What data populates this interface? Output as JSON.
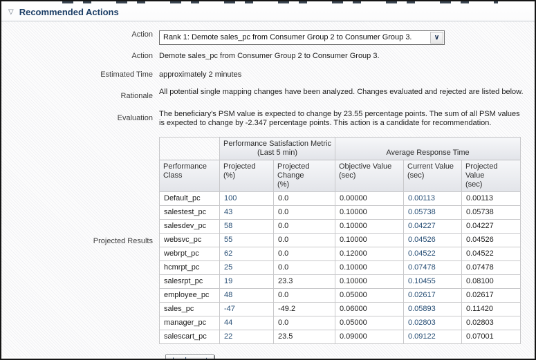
{
  "colors": {
    "accent_navy": "#1c3e66",
    "value_blue": "#274e75",
    "table_border": "#c8c8ca"
  },
  "icons": {
    "collapse_triangle": "▽",
    "select_chevron": "∨"
  },
  "section": {
    "title": "Recommended Actions"
  },
  "form": {
    "action_select": {
      "label": "Action",
      "value": "Rank 1: Demote sales_pc from Consumer Group 2 to Consumer Group 3."
    },
    "action": {
      "label": "Action",
      "value": "Demote sales_pc from Consumer Group 2 to Consumer Group 3."
    },
    "estimated_time": {
      "label": "Estimated Time",
      "value": "approximately 2 minutes"
    },
    "rationale": {
      "label": "Rationale",
      "value": "All potential single mapping changes have been analyzed. Changes evaluated and rejected are listed below."
    },
    "evaluation": {
      "label": "Evaluation",
      "value": "The beneficiary's PSM value is expected to change by 23.55 percentage points. The sum of all PSM values is expected to change by -2.347 percentage points. This action is a candidate for recommendation."
    },
    "projected_results": {
      "label": "Projected Results"
    }
  },
  "table": {
    "groups": [
      {
        "label": "Performance Satisfaction Metric",
        "sublabel": "(Last 5 min)"
      },
      {
        "label": "Average Response Time"
      }
    ],
    "columns": [
      {
        "l1": "Performance",
        "l2": "Class"
      },
      {
        "l1": "Projected",
        "l2": "(%)"
      },
      {
        "l1": "Projected Change",
        "l2": "(%)"
      },
      {
        "l1": "Objective Value",
        "l2": "(sec)"
      },
      {
        "l1": "Current Value",
        "l2": "(sec)"
      },
      {
        "l1": "Projected Value",
        "l2": "(sec)"
      }
    ],
    "blue_columns": [
      1,
      4
    ],
    "rows": [
      [
        "Default_pc",
        "100",
        "0.0",
        "0.00000",
        "0.00113",
        "0.00113"
      ],
      [
        "salestest_pc",
        "43",
        "0.0",
        "0.10000",
        "0.05738",
        "0.05738"
      ],
      [
        "salesdev_pc",
        "58",
        "0.0",
        "0.10000",
        "0.04227",
        "0.04227"
      ],
      [
        "websvc_pc",
        "55",
        "0.0",
        "0.10000",
        "0.04526",
        "0.04526"
      ],
      [
        "webrpt_pc",
        "62",
        "0.0",
        "0.12000",
        "0.04522",
        "0.04522"
      ],
      [
        "hcmrpt_pc",
        "25",
        "0.0",
        "0.10000",
        "0.07478",
        "0.07478"
      ],
      [
        "salesrpt_pc",
        "19",
        "23.3",
        "0.10000",
        "0.10455",
        "0.08100"
      ],
      [
        "employee_pc",
        "48",
        "0.0",
        "0.05000",
        "0.02617",
        "0.02617"
      ],
      [
        "sales_pc",
        "-47",
        "-49.2",
        "0.06000",
        "0.05893",
        "0.11420"
      ],
      [
        "manager_pc",
        "44",
        "0.0",
        "0.05000",
        "0.02803",
        "0.02803"
      ],
      [
        "salescart_pc",
        "22",
        "23.5",
        "0.09000",
        "0.09122",
        "0.07001"
      ]
    ]
  },
  "implement_button": {
    "label": "Implement"
  }
}
